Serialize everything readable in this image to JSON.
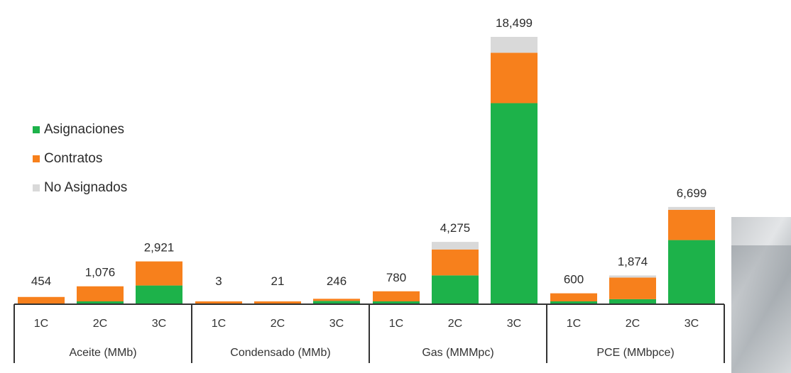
{
  "chart_data": {
    "type": "bar",
    "stacked": true,
    "title": "",
    "groups": [
      {
        "label": "Aceite (MMb)",
        "categories": [
          "1C",
          "2C",
          "3C"
        ],
        "totals": [
          "454",
          "1,076",
          "2,921"
        ],
        "series": {
          "Asignaciones": [
            0,
            30,
            1250
          ],
          "Contratos": [
            454,
            1046,
            1671
          ],
          "No Asignados": [
            0,
            0,
            0
          ]
        }
      },
      {
        "label": "Condensado (MMb)",
        "categories": [
          "1C",
          "2C",
          "3C"
        ],
        "totals": [
          "3",
          "21",
          "246"
        ],
        "series": {
          "Asignaciones": [
            0,
            0,
            180
          ],
          "Contratos": [
            3,
            21,
            66
          ],
          "No Asignados": [
            0,
            0,
            0
          ]
        }
      },
      {
        "label": "Gas (MMMpc)",
        "categories": [
          "1C",
          "2C",
          "3C"
        ],
        "totals": [
          "780",
          "4,275",
          "18,499"
        ],
        "series": {
          "Asignaciones": [
            80,
            1950,
            13900
          ],
          "Contratos": [
            700,
            1800,
            3500
          ],
          "No Asignados": [
            0,
            525,
            1099
          ]
        }
      },
      {
        "label": "PCE (MMbpce)",
        "categories": [
          "1C",
          "2C",
          "3C"
        ],
        "totals": [
          "600",
          "1,874",
          "6,699"
        ],
        "series": {
          "Asignaciones": [
            40,
            300,
            4400
          ],
          "Contratos": [
            560,
            1500,
            2100
          ],
          "No Asignados": [
            0,
            74,
            199
          ]
        }
      }
    ],
    "ylim": [
      0,
      18499
    ],
    "legend": {
      "position": "left",
      "entries": [
        "Asignaciones",
        "Contratos",
        "No Asignados"
      ]
    },
    "colors": {
      "Asignaciones": "#1db24a",
      "Contratos": "#f7801c",
      "No Asignados": "#d9d9d9"
    },
    "grid": false
  }
}
